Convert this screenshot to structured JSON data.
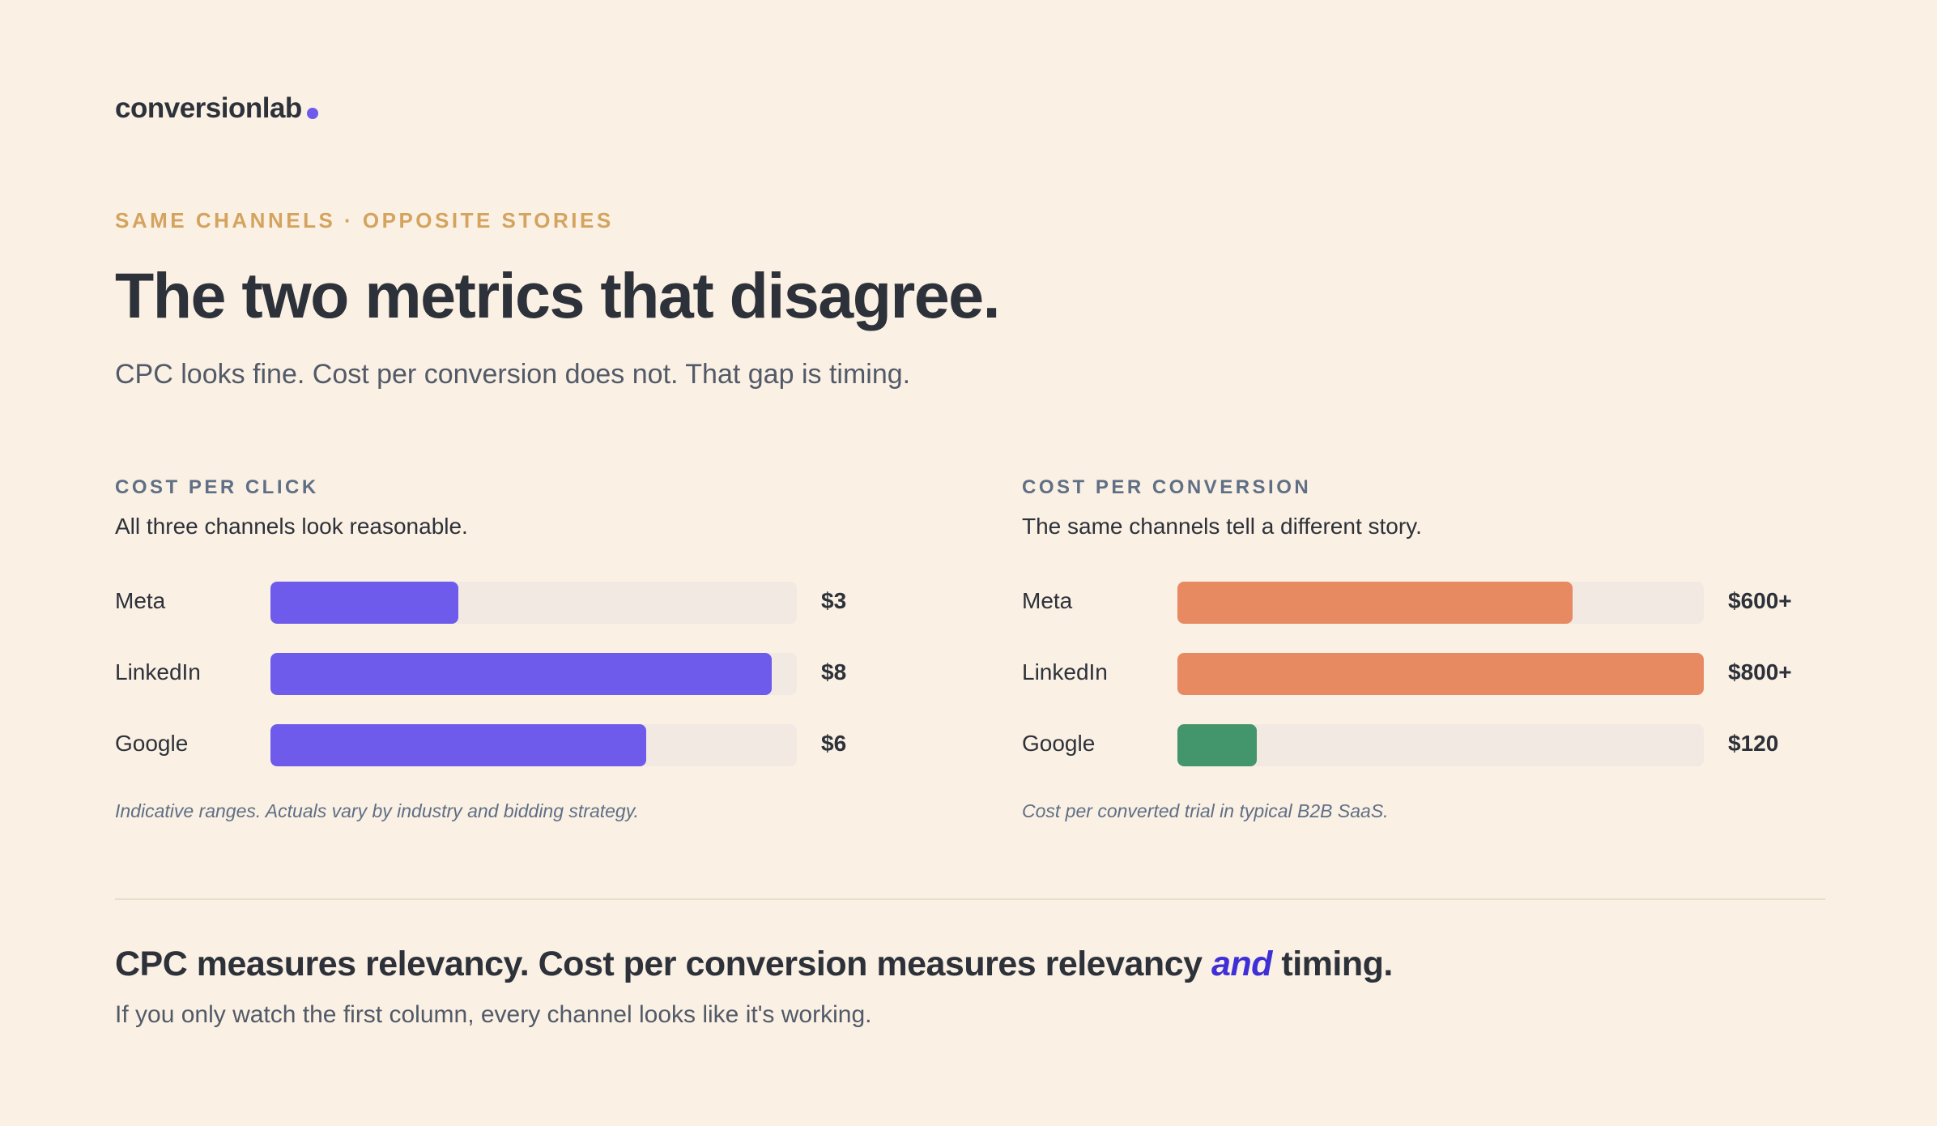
{
  "brand": {
    "name": "conversionlab",
    "dot_color": "#6e5aeb"
  },
  "eyebrow": "SAME CHANNELS · OPPOSITE STORIES",
  "headline": "The two metrics that disagree.",
  "subhead": "CPC looks fine. Cost per conversion does not. That gap is timing.",
  "takeaway": {
    "part1": "CPC measures relevancy. Cost per conversion measures relevancy ",
    "emphasis": "and",
    "part2": " timing.",
    "sub": "If you only watch the first column, every channel looks like it's working."
  },
  "colors": {
    "background": "#faf0e4",
    "cpc_bar": "#6e5aeb",
    "conversion_bar": "#e78a62",
    "good_bar": "#43956c",
    "track": "#f3e9e3",
    "eyebrow": "#d4a35e",
    "emphasis": "#3f2fd6"
  },
  "chart_data": [
    {
      "type": "bar",
      "orientation": "horizontal",
      "title": "COST PER CLICK",
      "subtitle": "All three channels look reasonable.",
      "note": "Indicative ranges. Actuals vary by industry and bidding strategy.",
      "categories": [
        "Meta",
        "LinkedIn",
        "Google"
      ],
      "values": [
        3,
        8,
        6
      ],
      "value_labels": [
        "$3",
        "$8",
        "$6"
      ],
      "xlim": [
        0,
        8.4
      ],
      "colors": [
        "#6e5aeb",
        "#6e5aeb",
        "#6e5aeb"
      ]
    },
    {
      "type": "bar",
      "orientation": "horizontal",
      "title": "COST PER CONVERSION",
      "subtitle": "The same channels tell a different story.",
      "note": "Cost per converted trial in typical B2B SaaS.",
      "categories": [
        "Meta",
        "LinkedIn",
        "Google"
      ],
      "values": [
        600,
        800,
        120
      ],
      "value_labels": [
        "$600+",
        "$800+",
        "$120"
      ],
      "xlim": [
        0,
        800
      ],
      "colors": [
        "#e78a62",
        "#e78a62",
        "#43956c"
      ]
    }
  ]
}
